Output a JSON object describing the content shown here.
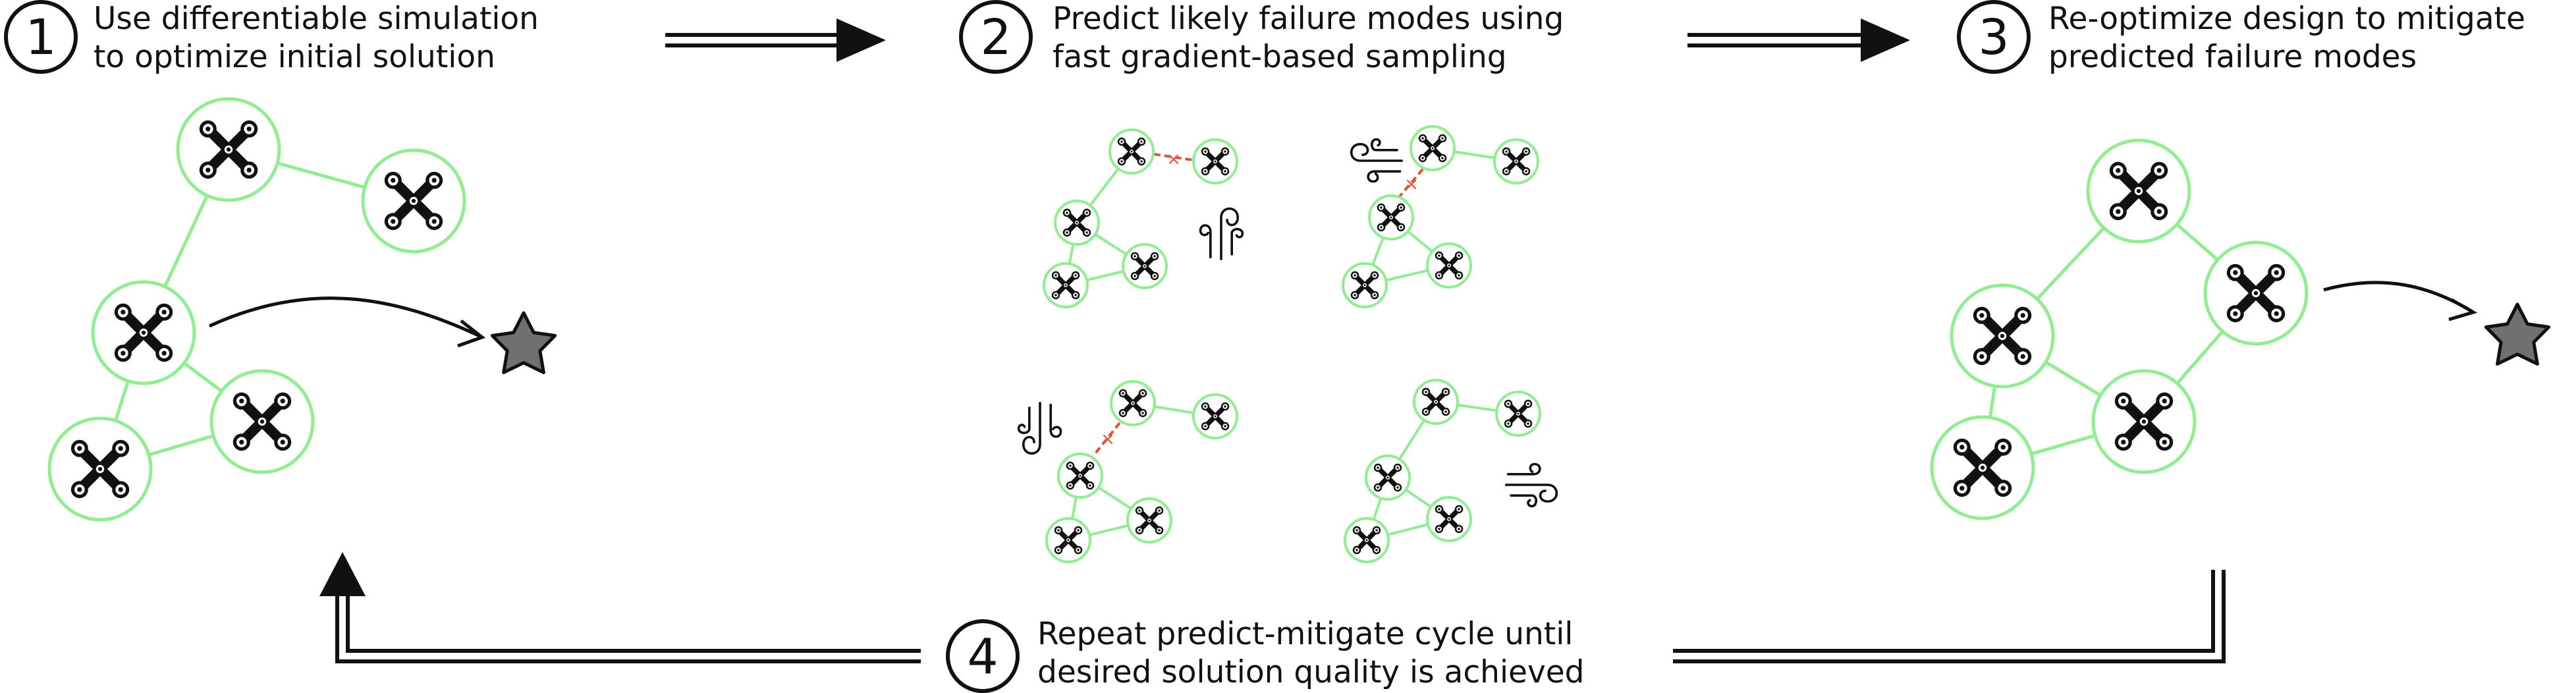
{
  "steps": [
    {
      "number": "1",
      "line1": "Use differentiable simulation",
      "line2": "to optimize initial solution"
    },
    {
      "number": "2",
      "line1": "Predict likely failure modes using",
      "line2": "fast gradient-based sampling"
    },
    {
      "number": "3",
      "line1": "Re-optimize design to mitigate",
      "line2": "predicted failure modes"
    },
    {
      "number": "4",
      "line1": "Repeat predict-mitigate cycle until",
      "line2": "desired solution quality is achieved"
    }
  ],
  "colors": {
    "node_ring": "#90EE90",
    "edge": "#90EE90",
    "drone": "#111111",
    "failure_link": "#E0533A",
    "target_star": "#707070",
    "arrow": "#111111"
  },
  "icons": [
    "drone-icon",
    "wind-gust-icon",
    "target-star-icon",
    "broken-link-icon"
  ]
}
